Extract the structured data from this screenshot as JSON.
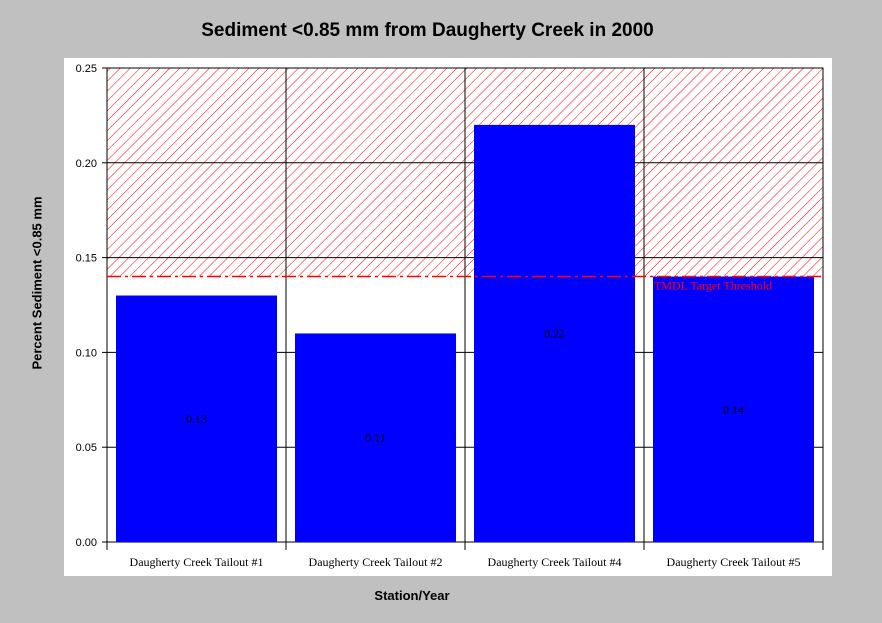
{
  "chart_data": {
    "type": "bar",
    "title": "Sediment <0.85 mm from Daugherty Creek in 2000",
    "xlabel": "Station/Year",
    "ylabel": "Percent Sediment <0.85 mm",
    "categories": [
      "Daugherty Creek Tailout #1",
      "Daugherty Creek Tailout #2",
      "Daugherty Creek Tailout #4",
      "Daugherty Creek Tailout #5"
    ],
    "values": [
      0.13,
      0.11,
      0.22,
      0.14
    ],
    "data_labels": [
      "0.13",
      "0.11",
      "0.22",
      "0.14"
    ],
    "ylim": [
      0,
      0.25
    ],
    "yticks": [
      0.0,
      0.05,
      0.1,
      0.15,
      0.2,
      0.25
    ],
    "ytick_labels": [
      "0.00",
      "0.05",
      "0.10",
      "0.15",
      "0.20",
      "0.25"
    ],
    "grid": true,
    "threshold": {
      "value": 0.14,
      "label": "TMDL Target Threshold",
      "shaded_above": true
    },
    "colors": {
      "bar": "#0000ff",
      "threshold": "#ff0000",
      "background": "#c0c0c0",
      "plot_background": "#ffffff",
      "grid": "#000000"
    }
  }
}
